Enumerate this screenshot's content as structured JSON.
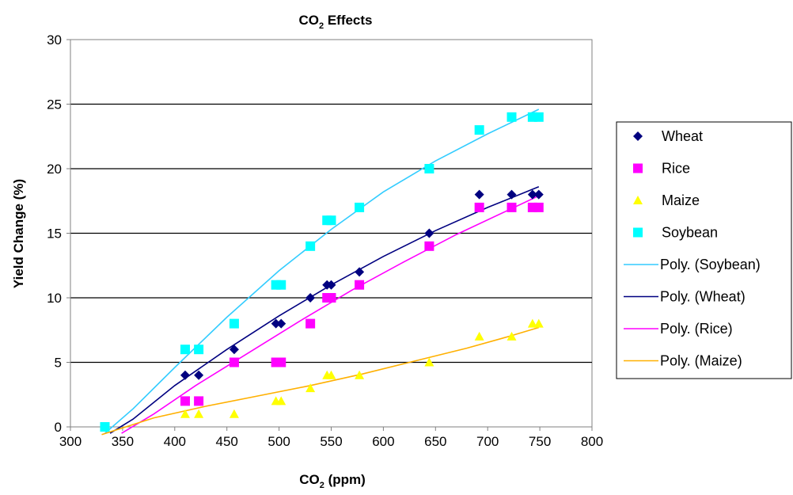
{
  "chart_data": {
    "type": "scatter",
    "title_main": "CO",
    "title_sub": "2",
    "title_rest": " Effects",
    "xlabel_main": "CO",
    "xlabel_sub": "2",
    "xlabel_rest": " (ppm)",
    "ylabel": "Yield Change (%)",
    "xlim": [
      300,
      800
    ],
    "ylim": [
      0,
      30
    ],
    "xticks": [
      300,
      350,
      400,
      450,
      500,
      550,
      600,
      650,
      700,
      750,
      800
    ],
    "yticks": [
      0,
      5,
      10,
      15,
      20,
      25,
      30
    ],
    "grid": "horizontal",
    "legend_position": "right",
    "series": [
      {
        "name": "Wheat",
        "marker": "diamond",
        "color": "#000080",
        "points": [
          [
            410,
            4
          ],
          [
            423,
            4
          ],
          [
            457,
            6
          ],
          [
            497,
            8
          ],
          [
            502,
            8
          ],
          [
            530,
            10
          ],
          [
            546,
            11
          ],
          [
            550,
            11
          ],
          [
            577,
            12
          ],
          [
            644,
            15
          ],
          [
            692,
            18
          ],
          [
            723,
            18
          ],
          [
            743,
            18
          ],
          [
            749,
            18
          ]
        ]
      },
      {
        "name": "Rice",
        "marker": "square",
        "color": "#ff00ff",
        "points": [
          [
            410,
            2
          ],
          [
            423,
            2
          ],
          [
            457,
            5
          ],
          [
            497,
            5
          ],
          [
            502,
            5
          ],
          [
            530,
            8
          ],
          [
            546,
            10
          ],
          [
            550,
            10
          ],
          [
            577,
            11
          ],
          [
            644,
            14
          ],
          [
            692,
            17
          ],
          [
            723,
            17
          ],
          [
            743,
            17
          ],
          [
            749,
            17
          ]
        ]
      },
      {
        "name": "Maize",
        "marker": "triangle",
        "color": "#ffff00",
        "points": [
          [
            410,
            1
          ],
          [
            423,
            1
          ],
          [
            457,
            1
          ],
          [
            497,
            2
          ],
          [
            502,
            2
          ],
          [
            530,
            3
          ],
          [
            546,
            4
          ],
          [
            550,
            4
          ],
          [
            577,
            4
          ],
          [
            644,
            5
          ],
          [
            692,
            7
          ],
          [
            723,
            7
          ],
          [
            743,
            8
          ],
          [
            749,
            8
          ]
        ]
      },
      {
        "name": "Soybean",
        "marker": "square",
        "color": "#00ffff",
        "points": [
          [
            333,
            0
          ],
          [
            410,
            6
          ],
          [
            423,
            6
          ],
          [
            457,
            8
          ],
          [
            497,
            11
          ],
          [
            502,
            11
          ],
          [
            530,
            14
          ],
          [
            546,
            16
          ],
          [
            550,
            16
          ],
          [
            577,
            17
          ],
          [
            644,
            20
          ],
          [
            692,
            23
          ],
          [
            723,
            24
          ],
          [
            743,
            24
          ],
          [
            749,
            24
          ]
        ]
      }
    ],
    "trendlines": [
      {
        "name": "Poly. (Soybean)",
        "color": "#33ccff",
        "points": [
          [
            333,
            -0.5
          ],
          [
            360,
            1.4
          ],
          [
            400,
            4.6
          ],
          [
            450,
            8.5
          ],
          [
            500,
            12.1
          ],
          [
            550,
            15.3
          ],
          [
            600,
            18.2
          ],
          [
            650,
            20.6
          ],
          [
            700,
            22.7
          ],
          [
            749,
            24.6
          ]
        ]
      },
      {
        "name": "Poly. (Wheat)",
        "color": "#000080",
        "points": [
          [
            338,
            -0.5
          ],
          [
            360,
            0.6
          ],
          [
            400,
            3.2
          ],
          [
            450,
            6.0
          ],
          [
            500,
            8.6
          ],
          [
            550,
            11.0
          ],
          [
            600,
            13.2
          ],
          [
            650,
            15.2
          ],
          [
            700,
            17.0
          ],
          [
            749,
            18.6
          ]
        ]
      },
      {
        "name": "Poly. (Rice)",
        "color": "#ff00ff",
        "points": [
          [
            349,
            -0.5
          ],
          [
            380,
            1.0
          ],
          [
            420,
            3.2
          ],
          [
            470,
            5.7
          ],
          [
            520,
            8.2
          ],
          [
            570,
            10.6
          ],
          [
            620,
            12.8
          ],
          [
            670,
            14.9
          ],
          [
            720,
            16.8
          ],
          [
            749,
            17.9
          ]
        ]
      },
      {
        "name": "Poly. (Maize)",
        "color": "#ffb000",
        "points": [
          [
            330,
            -0.6
          ],
          [
            380,
            0.7
          ],
          [
            430,
            1.6
          ],
          [
            480,
            2.4
          ],
          [
            530,
            3.2
          ],
          [
            580,
            4.1
          ],
          [
            630,
            5.1
          ],
          [
            680,
            6.1
          ],
          [
            720,
            7.0
          ],
          [
            749,
            7.7
          ]
        ]
      }
    ]
  }
}
